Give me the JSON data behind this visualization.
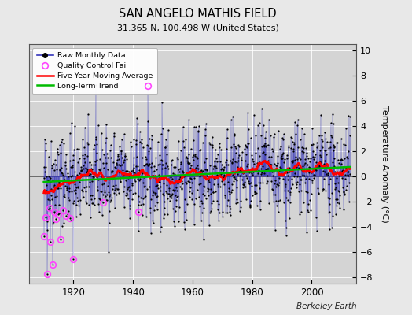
{
  "title": "SAN ANGELO MATHIS FIELD",
  "subtitle": "31.365 N, 100.498 W (United States)",
  "ylabel": "Temperature Anomaly (°C)",
  "xlabel_note": "Berkeley Earth",
  "ylim": [
    -8.5,
    10.5
  ],
  "xlim": [
    1905,
    2015
  ],
  "yticks": [
    -8,
    -6,
    -4,
    -2,
    0,
    2,
    4,
    6,
    8,
    10
  ],
  "xticks": [
    1920,
    1940,
    1960,
    1980,
    2000
  ],
  "year_start": 1910,
  "year_end": 2013,
  "fig_facecolor": "#e8e8e8",
  "plot_facecolor": "#d4d4d4",
  "raw_line_color": "#3333bb",
  "raw_dot_color": "#000000",
  "qc_fail_color": "#ff44ff",
  "moving_avg_color": "#ff0000",
  "trend_color": "#00bb00",
  "seed": 42
}
